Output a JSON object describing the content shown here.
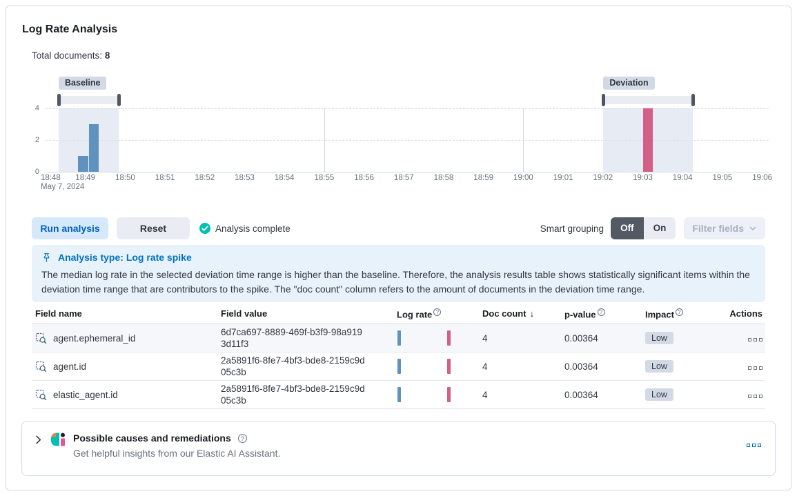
{
  "page": {
    "title": "Log Rate Analysis"
  },
  "summary": {
    "label": "Total documents:",
    "value": "8"
  },
  "chart_data": {
    "type": "bar",
    "title": "Document count histogram with baseline and deviation brushes",
    "x_axis": {
      "tick_labels": [
        "18:48",
        "18:49",
        "18:50",
        "18:51",
        "18:52",
        "18:53",
        "18:54",
        "18:55",
        "18:56",
        "18:57",
        "18:58",
        "18:59",
        "19:00",
        "19:01",
        "19:02",
        "19:03",
        "19:04",
        "19:05",
        "19:06"
      ],
      "date_label": "May 7, 2024",
      "minutes_span": 18
    },
    "y_axis": {
      "ticks": [
        "0",
        "2",
        "4"
      ],
      "max": 4
    },
    "series": [
      {
        "name": "baseline-doc-count",
        "color": "#6092C0",
        "bars": [
          {
            "start_min": 0.82,
            "width_min": 0.25,
            "value": 1
          },
          {
            "start_min": 1.09,
            "width_min": 0.25,
            "value": 3
          }
        ]
      },
      {
        "name": "deviation-doc-count",
        "color": "#D36086",
        "bars": [
          {
            "start_min": 15.01,
            "width_min": 0.25,
            "value": 4
          }
        ]
      }
    ],
    "brushes": [
      {
        "label": "Baseline",
        "from_min": 0.33,
        "to_min": 1.84
      },
      {
        "label": "Deviation",
        "from_min": 14.01,
        "to_min": 16.26
      }
    ],
    "vertical_gridlines_min": [
      7,
      12
    ],
    "selection_color": "#e7ebf4",
    "legend": "off"
  },
  "toolbar": {
    "run_label": "Run analysis",
    "reset_label": "Reset",
    "status_label": "Analysis complete",
    "smart_grouping_label": "Smart grouping",
    "off_label": "Off",
    "on_label": "On",
    "filter_fields_label": "Filter fields"
  },
  "callout": {
    "title": "Analysis type: Log rate spike",
    "body": "The median log rate in the selected deviation time range is higher than the baseline. Therefore, the analysis results table shows statistically significant items within the deviation time range that are contributors to the spike. The \"doc count\" column refers to the amount of documents in the deviation time range."
  },
  "table": {
    "headers": {
      "field_name": "Field name",
      "field_value": "Field value",
      "log_rate": "Log rate",
      "doc_count": "Doc count",
      "p_value": "p-value",
      "impact": "Impact",
      "actions": "Actions"
    },
    "sort": {
      "column": "doc_count",
      "direction": "descending",
      "arrow": "↓"
    },
    "help_glyph": "?",
    "rows": [
      {
        "field_name": "agent.ephemeral_id",
        "field_value": "6d7ca697-8889-469f-b3f9-98a9193d11f3",
        "doc_count": "4",
        "p_value": "0.00364",
        "impact": "Low"
      },
      {
        "field_name": "agent.id",
        "field_value": "2a5891f6-8fe7-4bf3-bde8-2159c9d05c3b",
        "doc_count": "4",
        "p_value": "0.00364",
        "impact": "Low"
      },
      {
        "field_name": "elastic_agent.id",
        "field_value": "2a5891f6-8fe7-4bf3-bde8-2159c9d05c3b",
        "doc_count": "4",
        "p_value": "0.00364",
        "impact": "Low"
      }
    ],
    "mini_hist_colors": {
      "baseline": "#6092C0",
      "deviation": "#D36086"
    }
  },
  "ai_panel": {
    "title": "Possible causes and remediations",
    "subtitle": "Get helpful insights from our Elastic AI Assistant."
  },
  "colors": {
    "accent_blue": "#0071c2",
    "bar_blue": "#6092C0",
    "bar_pink": "#D36086",
    "success_green": "#00BFB3",
    "badge_gray": "#d3dae6",
    "callout_bg": "#e8f2fb"
  }
}
